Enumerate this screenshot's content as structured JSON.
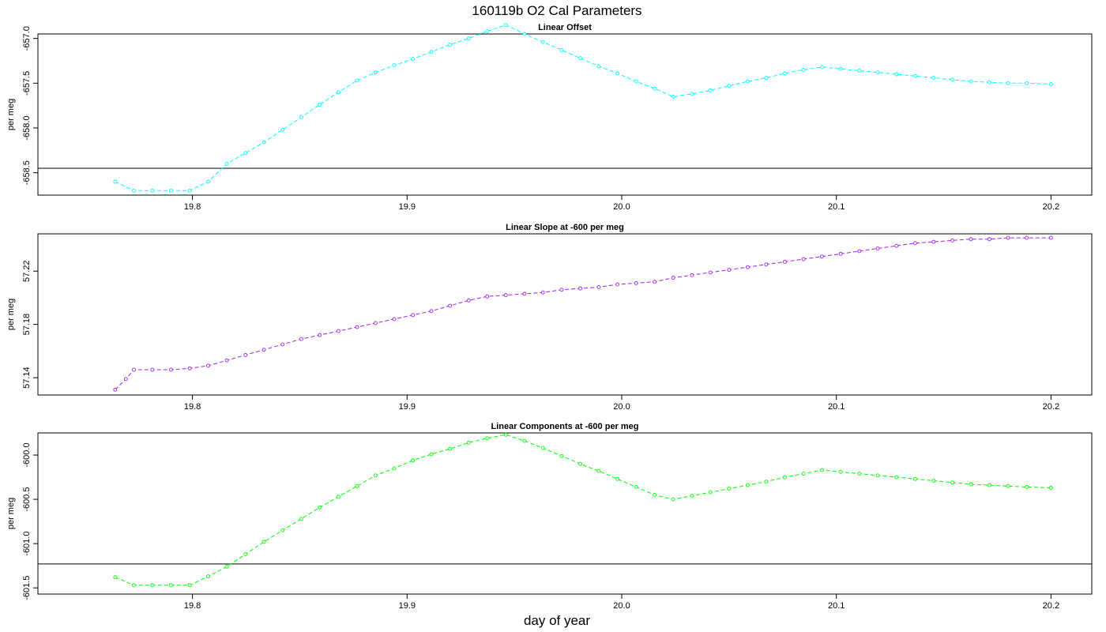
{
  "main_title": "160119b   O2 Cal Parameters",
  "x_axis_label": "day of year",
  "chart_data": [
    {
      "type": "line",
      "title": "Linear Offset",
      "ylabel": "per meg",
      "color": "#00ffff",
      "xlim": [
        19.728,
        20.219
      ],
      "ylim": [
        -658.75,
        -656.95
      ],
      "x_ticks": [
        "19.8",
        "19.9",
        "20.0",
        "20.1",
        "20.2"
      ],
      "y_ticks": [
        "-658.5",
        "-658.0",
        "-657.5",
        "-657.0"
      ],
      "reference_line": -658.45,
      "x": [
        19.764,
        19.7727,
        19.7813,
        19.79,
        19.7987,
        19.8073,
        19.816,
        19.8247,
        19.8333,
        19.842,
        19.8507,
        19.8593,
        19.868,
        19.8767,
        19.8853,
        19.894,
        19.9027,
        19.9113,
        19.92,
        19.9287,
        19.9373,
        19.946,
        19.9547,
        19.9633,
        19.972,
        19.9807,
        19.9893,
        19.998,
        20.0067,
        20.0153,
        20.024,
        20.0327,
        20.0413,
        20.05,
        20.0587,
        20.0673,
        20.076,
        20.0847,
        20.0933,
        20.102,
        20.1107,
        20.1193,
        20.128,
        20.1367,
        20.1453,
        20.154,
        20.1627,
        20.1713,
        20.18,
        20.1887,
        20.2
      ],
      "y": [
        -658.6,
        -658.7,
        -658.7,
        -658.7,
        -658.7,
        -658.6,
        -658.4,
        -658.28,
        -658.16,
        -658.02,
        -657.88,
        -657.74,
        -657.6,
        -657.47,
        -657.38,
        -657.3,
        -657.23,
        -657.15,
        -657.07,
        -657.0,
        -656.92,
        -656.85,
        -656.95,
        -657.04,
        -657.13,
        -657.22,
        -657.31,
        -657.39,
        -657.48,
        -657.56,
        -657.65,
        -657.62,
        -657.58,
        -657.53,
        -657.48,
        -657.44,
        -657.39,
        -657.35,
        -657.32,
        -657.34,
        -657.36,
        -657.38,
        -657.4,
        -657.42,
        -657.44,
        -657.46,
        -657.48,
        -657.49,
        -657.5,
        -657.5,
        -657.51
      ]
    },
    {
      "type": "line",
      "title": "Linear Slope at -600 per meg",
      "ylabel": "per meg",
      "color": "#a020f0",
      "xlim": [
        19.728,
        20.219
      ],
      "ylim": [
        57.127,
        57.248
      ],
      "x_ticks": [
        "19.8",
        "19.9",
        "20.0",
        "20.1",
        "20.2"
      ],
      "y_ticks": [
        "57.14",
        "57.18",
        "57.22"
      ],
      "x": [
        19.764,
        19.769,
        19.7727,
        19.7813,
        19.79,
        19.7987,
        19.8073,
        19.816,
        19.8247,
        19.8333,
        19.842,
        19.8507,
        19.8593,
        19.868,
        19.8767,
        19.8853,
        19.894,
        19.9027,
        19.9113,
        19.92,
        19.9287,
        19.9373,
        19.946,
        19.9547,
        19.9633,
        19.972,
        19.9807,
        19.9893,
        19.998,
        20.0067,
        20.0153,
        20.024,
        20.0327,
        20.0413,
        20.05,
        20.0587,
        20.0673,
        20.076,
        20.0847,
        20.0933,
        20.102,
        20.1107,
        20.1193,
        20.128,
        20.1367,
        20.1453,
        20.154,
        20.1627,
        20.1713,
        20.18,
        20.1887,
        20.2
      ],
      "y": [
        57.131,
        57.139,
        57.146,
        57.146,
        57.146,
        57.147,
        57.149,
        57.153,
        57.157,
        57.161,
        57.165,
        57.169,
        57.172,
        57.175,
        57.178,
        57.181,
        57.184,
        57.187,
        57.19,
        57.194,
        57.198,
        57.201,
        57.202,
        57.203,
        57.204,
        57.206,
        57.207,
        57.208,
        57.21,
        57.211,
        57.212,
        57.215,
        57.217,
        57.219,
        57.221,
        57.223,
        57.225,
        57.227,
        57.229,
        57.231,
        57.233,
        57.235,
        57.237,
        57.239,
        57.241,
        57.242,
        57.243,
        57.244,
        57.244,
        57.245,
        57.245,
        57.245
      ]
    },
    {
      "type": "line",
      "title": "Linear Components at -600 per meg",
      "ylabel": "per meg",
      "color": "#00ff00",
      "xlim": [
        19.728,
        20.219
      ],
      "ylim": [
        -601.57,
        -599.75
      ],
      "x_ticks": [
        "19.8",
        "19.9",
        "20.0",
        "20.1",
        "20.2"
      ],
      "y_ticks": [
        "-601.5",
        "-601.0",
        "-600.5",
        "-600.0"
      ],
      "reference_line": -601.23,
      "x": [
        19.764,
        19.7727,
        19.7813,
        19.79,
        19.7987,
        19.8073,
        19.816,
        19.8247,
        19.8333,
        19.842,
        19.8507,
        19.8593,
        19.868,
        19.8767,
        19.8853,
        19.894,
        19.9027,
        19.9113,
        19.92,
        19.9287,
        19.9373,
        19.946,
        19.9547,
        19.9633,
        19.972,
        19.9807,
        19.9893,
        19.998,
        20.0067,
        20.0153,
        20.024,
        20.0327,
        20.0413,
        20.05,
        20.0587,
        20.0673,
        20.076,
        20.0847,
        20.0933,
        20.102,
        20.1107,
        20.1193,
        20.128,
        20.1367,
        20.1453,
        20.154,
        20.1627,
        20.1713,
        20.18,
        20.1887,
        20.2
      ],
      "y": [
        -601.38,
        -601.47,
        -601.47,
        -601.47,
        -601.47,
        -601.37,
        -601.26,
        -601.12,
        -600.98,
        -600.85,
        -600.72,
        -600.59,
        -600.47,
        -600.35,
        -600.23,
        -600.15,
        -600.06,
        -599.99,
        -599.93,
        -599.86,
        -599.81,
        -599.77,
        -599.84,
        -599.92,
        -600.01,
        -600.1,
        -600.18,
        -600.27,
        -600.36,
        -600.45,
        -600.5,
        -600.46,
        -600.42,
        -600.38,
        -600.34,
        -600.3,
        -600.25,
        -600.21,
        -600.17,
        -600.19,
        -600.21,
        -600.23,
        -600.25,
        -600.27,
        -600.29,
        -600.31,
        -600.33,
        -600.34,
        -600.35,
        -600.36,
        -600.37
      ]
    }
  ]
}
